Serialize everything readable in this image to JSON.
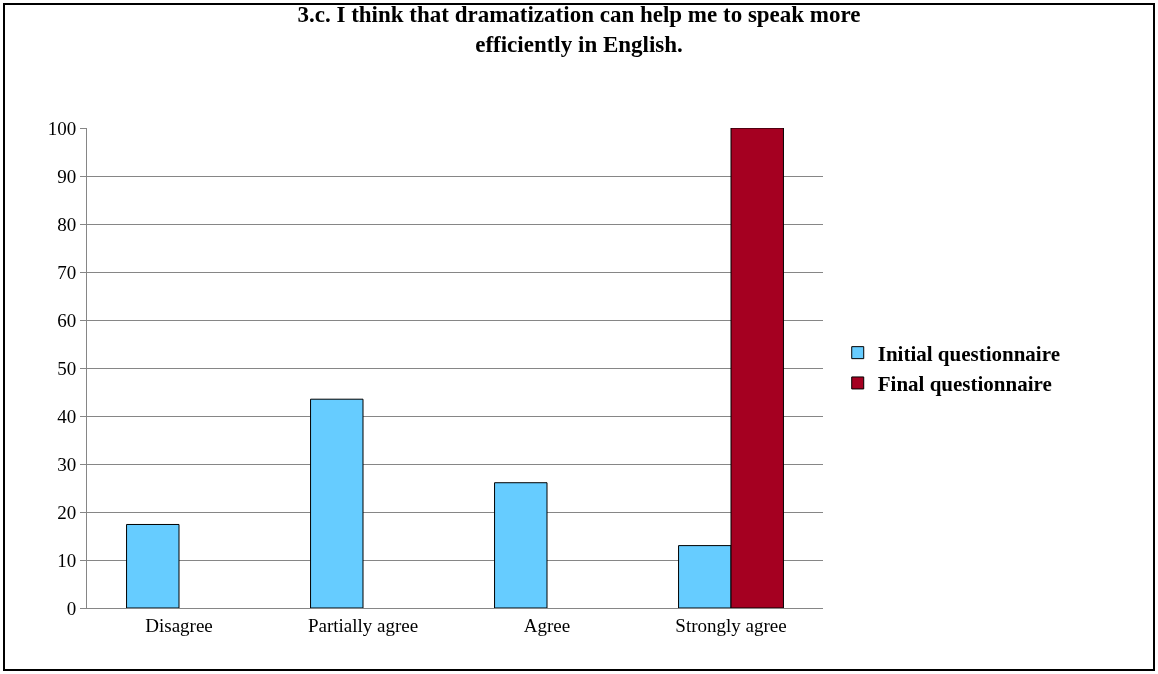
{
  "chart_data": {
    "type": "bar",
    "title": "3.c. I think that dramatization can help me to speak more\nefficiently in English.",
    "categories": [
      "Disagree",
      "Partially agree",
      "Agree",
      "Strongly agree"
    ],
    "series": [
      {
        "name": "Initial questionnaire",
        "color": "#66ccff",
        "values": [
          17.4,
          43.5,
          26.1,
          13
        ]
      },
      {
        "name": "Final questionnaire",
        "color": "#a50021",
        "values": [
          null,
          null,
          null,
          100
        ]
      }
    ],
    "ylim": [
      0,
      100
    ],
    "yticks": [
      0,
      10,
      20,
      30,
      40,
      50,
      60,
      70,
      80,
      90,
      100
    ],
    "grid": "y",
    "legend": "right"
  }
}
